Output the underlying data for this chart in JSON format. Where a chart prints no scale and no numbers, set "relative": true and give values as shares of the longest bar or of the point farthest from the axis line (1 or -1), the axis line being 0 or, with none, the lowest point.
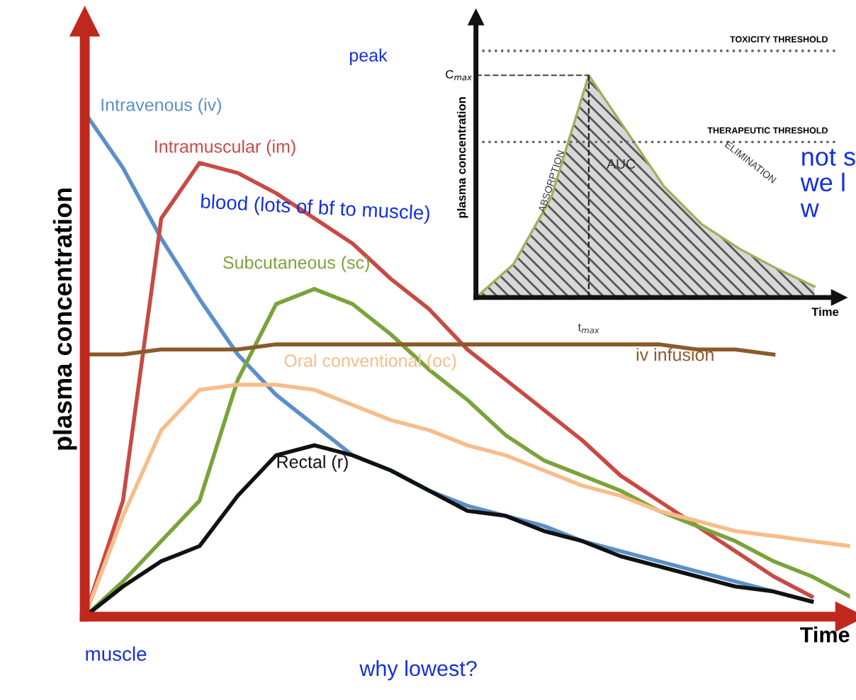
{
  "chart_data": [
    {
      "type": "line",
      "relative": true,
      "ylabel": "plasma concentration",
      "xlabel": "Time",
      "marker": "none",
      "line_style": "solid",
      "categories": [
        null,
        null,
        null,
        null,
        null,
        null,
        null,
        null,
        null,
        null,
        null,
        null,
        null,
        null,
        null,
        null,
        null,
        null,
        null,
        null,
        null
      ],
      "series": [
        {
          "name": "Intravenous (iv)",
          "color": "#5b8fc9",
          "values": [
            1.0,
            0.89,
            0.75,
            0.63,
            0.52,
            0.44,
            0.38,
            0.32,
            0.29,
            0.25,
            0.22,
            0.2,
            0.18,
            0.15,
            0.13,
            0.11,
            0.09,
            0.07,
            0.05,
            0.03,
            null
          ]
        },
        {
          "name": "Intramuscular (im)",
          "color": "#c84a44",
          "values": [
            0.0,
            0.23,
            0.79,
            0.9,
            0.88,
            0.84,
            0.79,
            0.74,
            0.67,
            0.61,
            0.53,
            0.47,
            0.41,
            0.35,
            0.28,
            0.23,
            0.18,
            0.13,
            0.08,
            0.04,
            null
          ]
        },
        {
          "name": "Subcutaneous (sc)",
          "color": "#7aa33a",
          "values": [
            0.0,
            0.07,
            0.15,
            0.23,
            0.47,
            0.62,
            0.65,
            0.62,
            0.56,
            0.49,
            0.43,
            0.36,
            0.31,
            0.28,
            0.25,
            0.21,
            0.18,
            0.15,
            0.11,
            0.08,
            0.04
          ]
        },
        {
          "name": "Oral conventional (oc)",
          "color": "#f7bd8a",
          "values": [
            0.0,
            0.2,
            0.37,
            0.45,
            0.46,
            0.46,
            0.45,
            0.42,
            0.39,
            0.37,
            0.34,
            0.32,
            0.29,
            0.26,
            0.24,
            0.21,
            0.19,
            0.17,
            0.16,
            0.15,
            0.14
          ]
        },
        {
          "name": "Rectal (r)",
          "color": "#111111",
          "values": [
            0.0,
            0.06,
            0.11,
            0.14,
            0.24,
            0.32,
            0.34,
            0.32,
            0.29,
            0.25,
            0.21,
            0.2,
            0.17,
            0.15,
            0.12,
            0.1,
            0.08,
            0.06,
            0.05,
            0.03,
            null
          ]
        },
        {
          "name": "iv infusion",
          "color": "#8b5a2b",
          "values": [
            0.52,
            0.52,
            0.53,
            0.53,
            0.53,
            0.54,
            0.54,
            0.54,
            0.54,
            0.54,
            0.54,
            0.54,
            0.54,
            0.54,
            0.54,
            0.54,
            0.53,
            0.53,
            0.52,
            null,
            null
          ]
        }
      ],
      "annotations": [
        "blood (lots of bf to muscle)",
        "muscle",
        "why lowest?",
        "not s\nwe l\nw"
      ]
    },
    {
      "type": "area",
      "relative": true,
      "ylabel": "plasma concentration",
      "xlabel": "Time",
      "categories": [
        null,
        null,
        null,
        null,
        null,
        null,
        null,
        null,
        null,
        null
      ],
      "series": [
        {
          "color": "#9bb35a",
          "values": [
            0.0,
            0.15,
            0.45,
            1.0,
            0.75,
            0.5,
            0.33,
            0.22,
            0.13,
            0.05
          ]
        }
      ],
      "ref_lines": [
        {
          "axis": "y",
          "value": 1.11,
          "label": "TOXICITY THRESHOLD",
          "line_style": "dotted"
        },
        {
          "axis": "y",
          "value": 0.7,
          "label": "THERAPEUTIC THRESHOLD",
          "line_style": "dotted"
        },
        {
          "axis": "y",
          "value": 1.0,
          "label": "C$_{max}$",
          "line_style": "dashed"
        }
      ],
      "annotations": [
        "ABSORPTION",
        "AUC",
        "ELIMINATION",
        "peak",
        "t$_{max}$"
      ]
    }
  ]
}
